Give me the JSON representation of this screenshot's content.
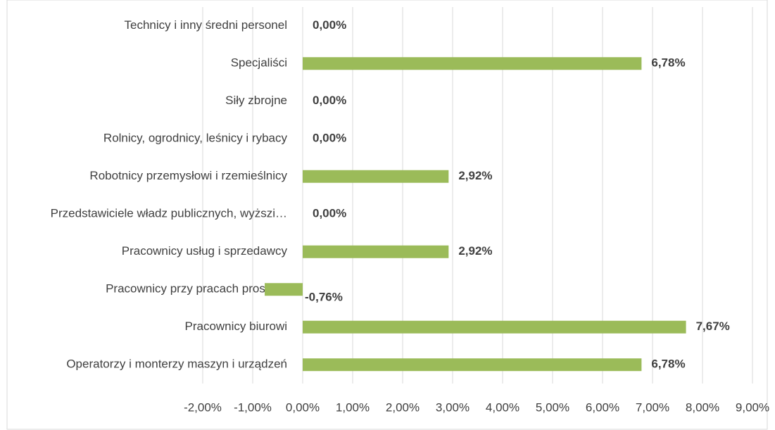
{
  "chart_data": {
    "type": "bar",
    "orientation": "horizontal",
    "categories": [
      "Technicy i inny średni personel",
      "Specjaliści",
      "Siły zbrojne",
      "Rolnicy, ogrodnicy, leśnicy i rybacy",
      "Robotnicy przemysłowi i rzemieślnicy",
      "Przedstawiciele władz publicznych, wyższi…",
      "Pracownicy usług i sprzedawcy",
      "Pracownicy przy pracach prostych",
      "Pracownicy biurowi",
      "Operatorzy i monterzy maszyn i urządzeń"
    ],
    "values": [
      0,
      6.78,
      0,
      0,
      2.92,
      0,
      2.92,
      -0.76,
      7.67,
      6.78
    ],
    "value_labels": [
      "0,00%",
      "6,78%",
      "0,00%",
      "0,00%",
      "2,92%",
      "0,00%",
      "2,92%",
      "-0,76%",
      "7,67%",
      "6,78%"
    ],
    "color": "#9bbb59",
    "xlim": [
      -2,
      9
    ],
    "xticks": [
      {
        "value": -2,
        "label": "-2,00%"
      },
      {
        "value": -1,
        "label": "-1,00%"
      },
      {
        "value": 0,
        "label": "0,00%"
      },
      {
        "value": 1,
        "label": "1,00%"
      },
      {
        "value": 2,
        "label": "2,00%"
      },
      {
        "value": 3,
        "label": "3,00%"
      },
      {
        "value": 4,
        "label": "4,00%"
      },
      {
        "value": 5,
        "label": "5,00%"
      },
      {
        "value": 6,
        "label": "6,00%"
      },
      {
        "value": 7,
        "label": "7,00%"
      },
      {
        "value": 8,
        "label": "8,00%"
      },
      {
        "value": 9,
        "label": "9,00%"
      }
    ],
    "grid": true
  }
}
